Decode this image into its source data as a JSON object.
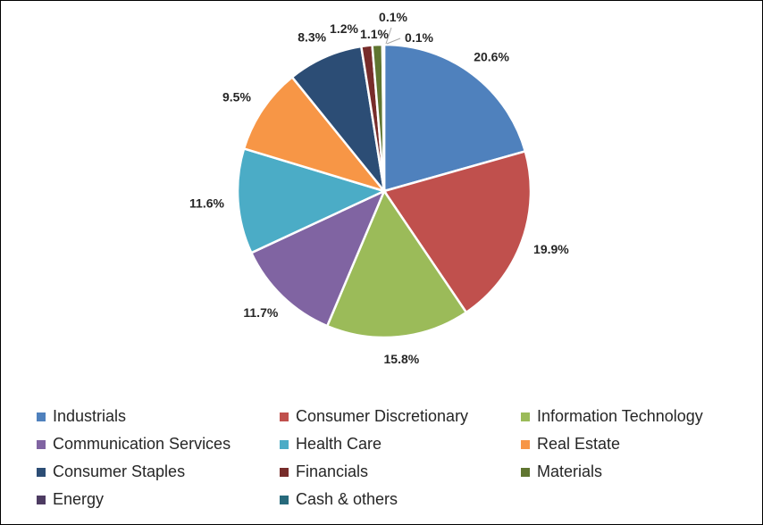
{
  "chart_data": {
    "type": "pie",
    "title": "",
    "legend_position": "bottom",
    "categories": [
      "Industrials",
      "Consumer Discretionary",
      "Information Technology",
      "Communication Services",
      "Health Care",
      "Real Estate",
      "Consumer Staples",
      "Financials",
      "Materials",
      "Energy",
      "Cash & others"
    ],
    "values": [
      20.6,
      19.9,
      15.8,
      11.7,
      11.6,
      9.5,
      8.3,
      1.2,
      1.1,
      0.1,
      0.1
    ],
    "labels": [
      "20.6%",
      "19.9%",
      "15.8%",
      "11.7%",
      "11.6%",
      "9.5%",
      "8.3%",
      "1.2%",
      "1.1%",
      "0.1%",
      "0.1%"
    ],
    "colors": [
      "#4F81BD",
      "#C0504D",
      "#9BBB59",
      "#8064A2",
      "#4BACC6",
      "#F79646",
      "#2C4D75",
      "#772C2A",
      "#5F7530",
      "#4D3B62",
      "#276A7C"
    ]
  }
}
